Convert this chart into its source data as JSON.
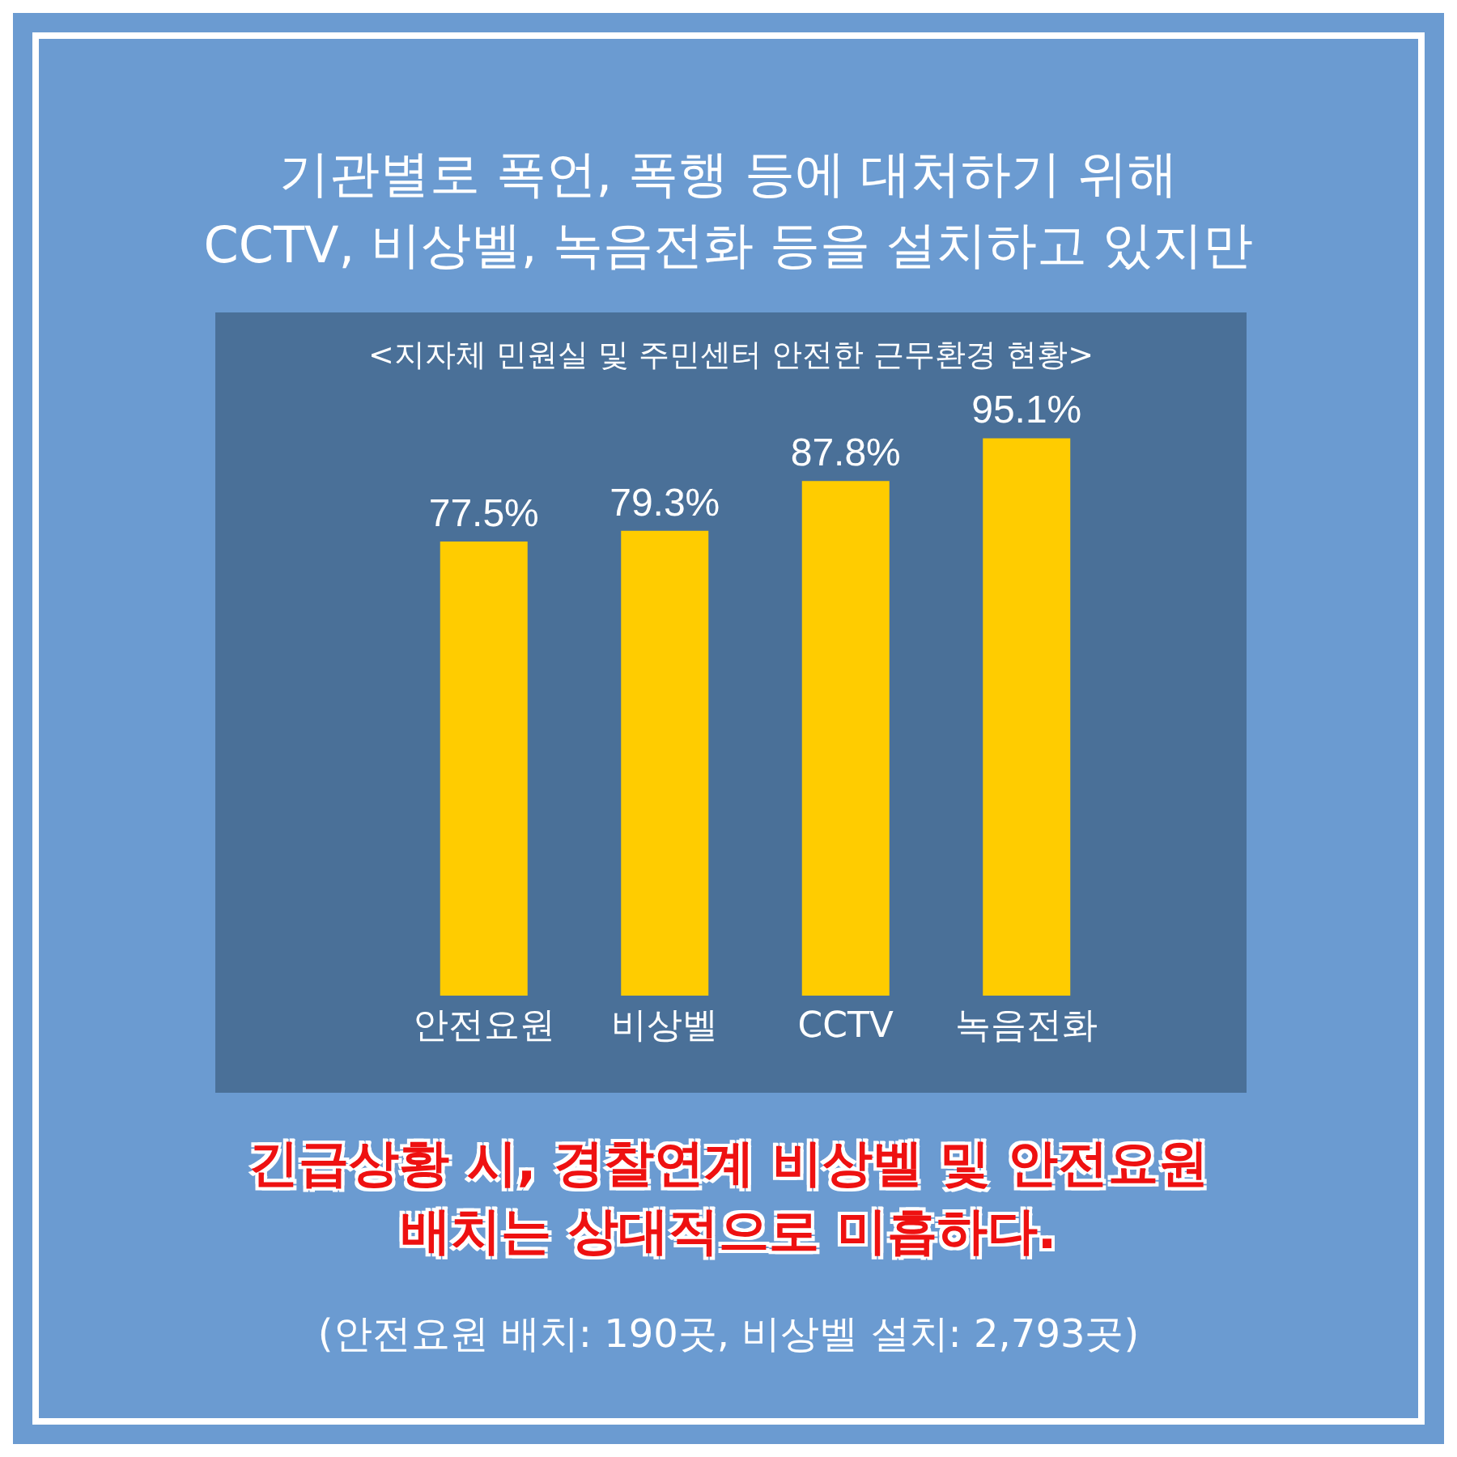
{
  "chart_data": {
    "type": "bar",
    "title": "기관별로 폭언, 폭행 등에 대처하기 위해\nCCTV, 비상벨, 녹음전화 등을 설치하고 있지만",
    "subtitle": "<지자체 민원실 및 주민센터 안전한 근무환경 현황>",
    "categories": [
      "안전요원",
      "비상벨",
      "CCTV",
      "녹음전화"
    ],
    "values": [
      77.5,
      79.3,
      87.8,
      95.1
    ],
    "color": "#ffcc00",
    "value_labels": [
      "77.5%",
      "79.3%",
      "87.8%",
      "95.1%"
    ],
    "annotations": [
      "긴급상황 시, 경찰연계 비상벨 및 안전요원\n배치는 상대적으로 미흡하다.",
      "(안전요원 배치: 190곳, 비상벨 설치: 2,793곳)"
    ]
  }
}
